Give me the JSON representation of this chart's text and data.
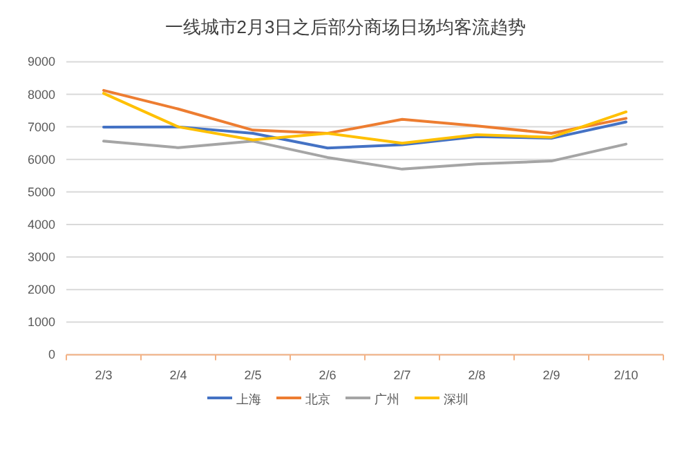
{
  "chart_data": {
    "type": "line",
    "title": "一线城市2月3日之后部分商场日场均客流趋势",
    "categories": [
      "2/3",
      "2/4",
      "2/5",
      "2/6",
      "2/7",
      "2/8",
      "2/9",
      "2/10"
    ],
    "series": [
      {
        "name": "上海",
        "color": "#4472c4",
        "values": [
          6990,
          7000,
          6800,
          6350,
          6450,
          6700,
          6650,
          7150
        ]
      },
      {
        "name": "北京",
        "color": "#ed7d31",
        "values": [
          8120,
          7550,
          6900,
          6800,
          7230,
          7030,
          6800,
          7260
        ]
      },
      {
        "name": "广州",
        "color": "#a5a5a5",
        "values": [
          6560,
          6360,
          6560,
          6060,
          5700,
          5860,
          5950,
          6470
        ]
      },
      {
        "name": "深圳",
        "color": "#ffc000",
        "values": [
          8030,
          7000,
          6600,
          6800,
          6500,
          6760,
          6680,
          7460
        ]
      }
    ],
    "ylim": [
      0,
      9000
    ],
    "yticks": [
      0,
      1000,
      2000,
      3000,
      4000,
      5000,
      6000,
      7000,
      8000,
      9000
    ],
    "grid": "y",
    "legend": "bottom",
    "marker": "none",
    "line_style": "solid"
  }
}
